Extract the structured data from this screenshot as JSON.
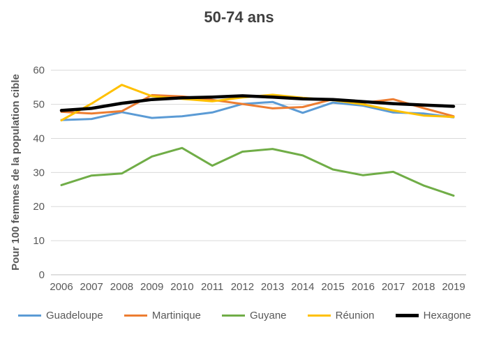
{
  "chart_data": {
    "type": "line",
    "title": "50-74 ans",
    "ylabel": "Pour 100 femmes de la population cible",
    "xlabel": "",
    "x_labels": [
      "2006",
      "2007",
      "2008",
      "2009",
      "2010",
      "2011",
      "2012",
      "2013",
      "2014",
      "2015",
      "2016",
      "2017",
      "2018",
      "2019"
    ],
    "yticks": [
      0,
      10,
      20,
      30,
      40,
      50,
      60
    ],
    "ylim": [
      0,
      60
    ],
    "grid": true,
    "legend_position": "bottom",
    "series": [
      {
        "name": "Guadeloupe",
        "color": "#5B9BD5",
        "line_width": 3,
        "values": [
          45.4,
          45.7,
          47.7,
          46.0,
          46.5,
          47.6,
          50.1,
          50.7,
          47.5,
          50.5,
          49.6,
          47.6,
          47.3,
          46.2
        ]
      },
      {
        "name": "Martinique",
        "color": "#ED7D31",
        "line_width": 3,
        "values": [
          47.8,
          47.3,
          48.0,
          52.7,
          52.3,
          51.3,
          50.1,
          48.8,
          49.2,
          51.5,
          50.4,
          51.5,
          48.9,
          46.5
        ]
      },
      {
        "name": "Guyane",
        "color": "#70AD47",
        "line_width": 3,
        "values": [
          26.3,
          29.1,
          29.7,
          34.7,
          37.2,
          32.0,
          36.1,
          36.9,
          35.0,
          30.9,
          29.2,
          30.2,
          26.2,
          23.2
        ]
      },
      {
        "name": "Réunion",
        "color": "#FFC000",
        "line_width": 3,
        "values": [
          45.3,
          50.2,
          55.7,
          52.4,
          51.6,
          50.9,
          52.0,
          52.8,
          51.9,
          51.2,
          50.0,
          48.2,
          46.7,
          46.3
        ]
      },
      {
        "name": "Hexagone",
        "color": "#000000",
        "line_width": 4.5,
        "values": [
          48.2,
          48.8,
          50.3,
          51.4,
          51.9,
          52.1,
          52.5,
          52.1,
          51.6,
          51.4,
          50.8,
          50.2,
          49.8,
          49.4
        ]
      }
    ]
  },
  "colors": {
    "title_text": "#3F3F3F",
    "axis_text": "#595959",
    "gridline": "#D9D9D9",
    "axis_line": "#BFBFBF",
    "background": "#FFFFFF"
  }
}
